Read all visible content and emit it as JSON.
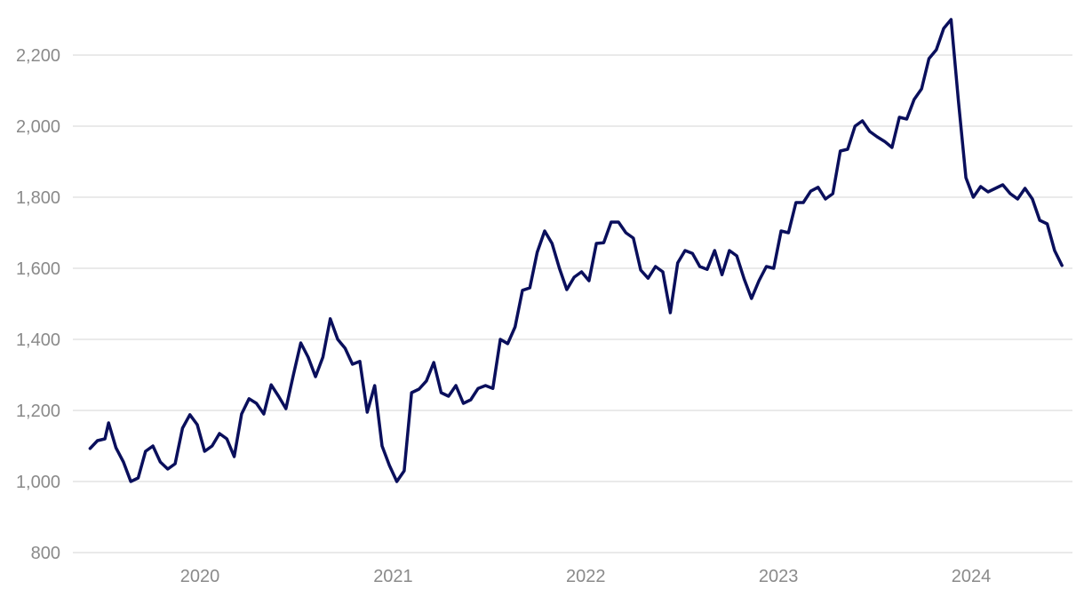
{
  "chart_data": {
    "type": "line",
    "title": "",
    "xlabel": "",
    "ylabel": "",
    "x_range": [
      "2019-06-01",
      "2024-06-30"
    ],
    "ylim": [
      800,
      2300
    ],
    "y_ticks": [
      800,
      1000,
      1200,
      1400,
      1600,
      1800,
      2000,
      2200
    ],
    "y_tick_labels": [
      "800",
      "1,000",
      "1,200",
      "1,400",
      "1,600",
      "1,800",
      "2,000",
      "2,200"
    ],
    "x_ticks": [
      "2020-01-01",
      "2021-01-01",
      "2022-01-01",
      "2023-01-01",
      "2024-01-01"
    ],
    "x_tick_labels": [
      "2020",
      "2021",
      "2022",
      "2023",
      "2024"
    ],
    "grid": "horizontal",
    "legend": "none",
    "series": [
      {
        "color": "#0a0f5c",
        "points": [
          [
            "2019-06-07",
            1093
          ],
          [
            "2019-06-21",
            1115
          ],
          [
            "2019-07-05",
            1120
          ],
          [
            "2019-07-12",
            1165
          ],
          [
            "2019-07-26",
            1095
          ],
          [
            "2019-08-09",
            1055
          ],
          [
            "2019-08-23",
            1000
          ],
          [
            "2019-09-06",
            1010
          ],
          [
            "2019-09-20",
            1085
          ],
          [
            "2019-10-04",
            1100
          ],
          [
            "2019-10-18",
            1055
          ],
          [
            "2019-11-01",
            1035
          ],
          [
            "2019-11-15",
            1050
          ],
          [
            "2019-11-29",
            1150
          ],
          [
            "2019-12-13",
            1188
          ],
          [
            "2019-12-27",
            1160
          ],
          [
            "2020-01-10",
            1085
          ],
          [
            "2020-01-24",
            1100
          ],
          [
            "2020-02-07",
            1135
          ],
          [
            "2020-02-21",
            1120
          ],
          [
            "2020-03-06",
            1070
          ],
          [
            "2020-03-20",
            1190
          ],
          [
            "2020-04-03",
            1233
          ],
          [
            "2020-04-17",
            1220
          ],
          [
            "2020-05-01",
            1190
          ],
          [
            "2020-05-15",
            1272
          ],
          [
            "2020-05-29",
            1240
          ],
          [
            "2020-06-12",
            1205
          ],
          [
            "2020-06-26",
            1300
          ],
          [
            "2020-07-10",
            1390
          ],
          [
            "2020-07-24",
            1350
          ],
          [
            "2020-08-07",
            1295
          ],
          [
            "2020-08-21",
            1350
          ],
          [
            "2020-09-04",
            1458
          ],
          [
            "2020-09-18",
            1400
          ],
          [
            "2020-10-02",
            1375
          ],
          [
            "2020-10-16",
            1330
          ],
          [
            "2020-10-30",
            1338
          ],
          [
            "2020-11-13",
            1195
          ],
          [
            "2020-11-27",
            1270
          ],
          [
            "2020-12-11",
            1100
          ],
          [
            "2020-12-25",
            1045
          ],
          [
            "2021-01-08",
            1000
          ],
          [
            "2021-01-22",
            1030
          ],
          [
            "2021-02-05",
            1250
          ],
          [
            "2021-02-19",
            1260
          ],
          [
            "2021-03-05",
            1283
          ],
          [
            "2021-03-19",
            1335
          ],
          [
            "2021-04-02",
            1250
          ],
          [
            "2021-04-16",
            1240
          ],
          [
            "2021-04-30",
            1270
          ],
          [
            "2021-05-14",
            1220
          ],
          [
            "2021-05-28",
            1230
          ],
          [
            "2021-06-11",
            1262
          ],
          [
            "2021-06-25",
            1270
          ],
          [
            "2021-07-09",
            1262
          ],
          [
            "2021-07-23",
            1400
          ],
          [
            "2021-08-06",
            1388
          ],
          [
            "2021-08-20",
            1435
          ],
          [
            "2021-09-03",
            1538
          ],
          [
            "2021-09-17",
            1545
          ],
          [
            "2021-10-01",
            1645
          ],
          [
            "2021-10-15",
            1705
          ],
          [
            "2021-10-29",
            1670
          ],
          [
            "2021-11-12",
            1600
          ],
          [
            "2021-11-26",
            1540
          ],
          [
            "2021-12-10",
            1575
          ],
          [
            "2021-12-24",
            1590
          ],
          [
            "2022-01-07",
            1565
          ],
          [
            "2022-01-21",
            1670
          ],
          [
            "2022-02-04",
            1672
          ],
          [
            "2022-02-18",
            1730
          ],
          [
            "2022-03-04",
            1730
          ],
          [
            "2022-03-18",
            1700
          ],
          [
            "2022-04-01",
            1685
          ],
          [
            "2022-04-15",
            1595
          ],
          [
            "2022-04-29",
            1572
          ],
          [
            "2022-05-13",
            1605
          ],
          [
            "2022-05-27",
            1590
          ],
          [
            "2022-06-10",
            1475
          ],
          [
            "2022-06-24",
            1615
          ],
          [
            "2022-07-08",
            1650
          ],
          [
            "2022-07-22",
            1642
          ],
          [
            "2022-08-05",
            1605
          ],
          [
            "2022-08-19",
            1597
          ],
          [
            "2022-09-02",
            1650
          ],
          [
            "2022-09-16",
            1582
          ],
          [
            "2022-09-30",
            1650
          ],
          [
            "2022-10-14",
            1635
          ],
          [
            "2022-10-28",
            1570
          ],
          [
            "2022-11-11",
            1515
          ],
          [
            "2022-11-25",
            1565
          ],
          [
            "2022-12-09",
            1605
          ],
          [
            "2022-12-23",
            1600
          ],
          [
            "2023-01-06",
            1705
          ],
          [
            "2023-01-20",
            1700
          ],
          [
            "2023-02-03",
            1785
          ],
          [
            "2023-02-17",
            1785
          ],
          [
            "2023-03-03",
            1817
          ],
          [
            "2023-03-17",
            1828
          ],
          [
            "2023-03-31",
            1795
          ],
          [
            "2023-04-14",
            1810
          ],
          [
            "2023-04-28",
            1930
          ],
          [
            "2023-05-12",
            1935
          ],
          [
            "2023-05-26",
            2000
          ],
          [
            "2023-06-09",
            2015
          ],
          [
            "2023-06-23",
            1985
          ],
          [
            "2023-07-07",
            1970
          ],
          [
            "2023-07-21",
            1957
          ],
          [
            "2023-08-04",
            1940
          ],
          [
            "2023-08-18",
            2025
          ],
          [
            "2023-09-01",
            2020
          ],
          [
            "2023-09-15",
            2075
          ],
          [
            "2023-09-29",
            2105
          ],
          [
            "2023-10-13",
            2190
          ],
          [
            "2023-10-27",
            2215
          ],
          [
            "2023-11-10",
            2275
          ],
          [
            "2023-11-24",
            2300
          ],
          [
            "2023-12-08",
            2070
          ],
          [
            "2023-12-22",
            1855
          ],
          [
            "2024-01-05",
            1800
          ],
          [
            "2024-01-19",
            1830
          ],
          [
            "2024-02-02",
            1815
          ],
          [
            "2024-02-16",
            1825
          ],
          [
            "2024-03-01",
            1835
          ],
          [
            "2024-03-15",
            1810
          ],
          [
            "2024-03-29",
            1795
          ],
          [
            "2024-04-12",
            1825
          ],
          [
            "2024-04-26",
            1795
          ],
          [
            "2024-05-10",
            1735
          ],
          [
            "2024-05-24",
            1725
          ],
          [
            "2024-06-07",
            1650
          ],
          [
            "2024-06-21",
            1608
          ]
        ]
      }
    ]
  }
}
